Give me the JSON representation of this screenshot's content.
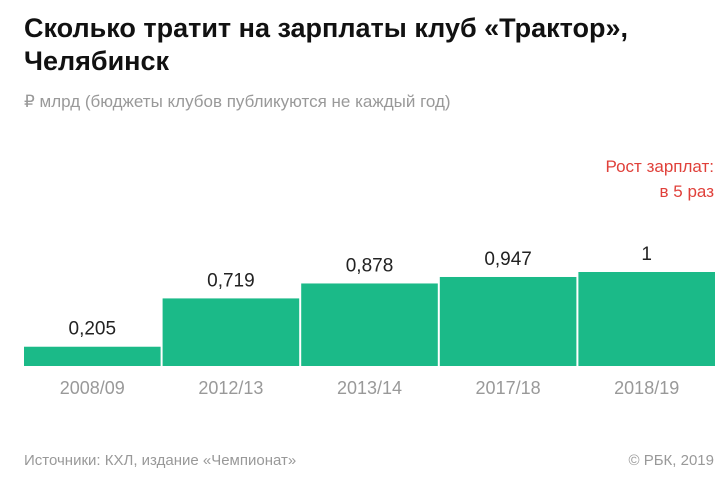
{
  "chart_data": {
    "type": "bar",
    "title": "Сколько тратит на зарплаты клуб «Трактор», Челябинск",
    "subtitle": "₽ млрд (бюджеты клубов публикуются не каждый год)",
    "categories": [
      "2008/09",
      "2012/13",
      "2013/14",
      "2017/18",
      "2018/19"
    ],
    "values": [
      0.205,
      0.719,
      0.878,
      0.947,
      1
    ],
    "value_labels": [
      "0,205",
      "0,719",
      "0,878",
      "0,947",
      "1"
    ],
    "ylim": [
      0,
      1
    ],
    "grid": false,
    "annotation": [
      "Рост зарплат:",
      "в 5 раз"
    ],
    "colors": {
      "bar": "#1bba88",
      "annotation": "#e0403a"
    }
  },
  "footer": {
    "source": "Источники: КХЛ, издание «Чемпионат»",
    "copyright": "© РБК, 2019"
  }
}
